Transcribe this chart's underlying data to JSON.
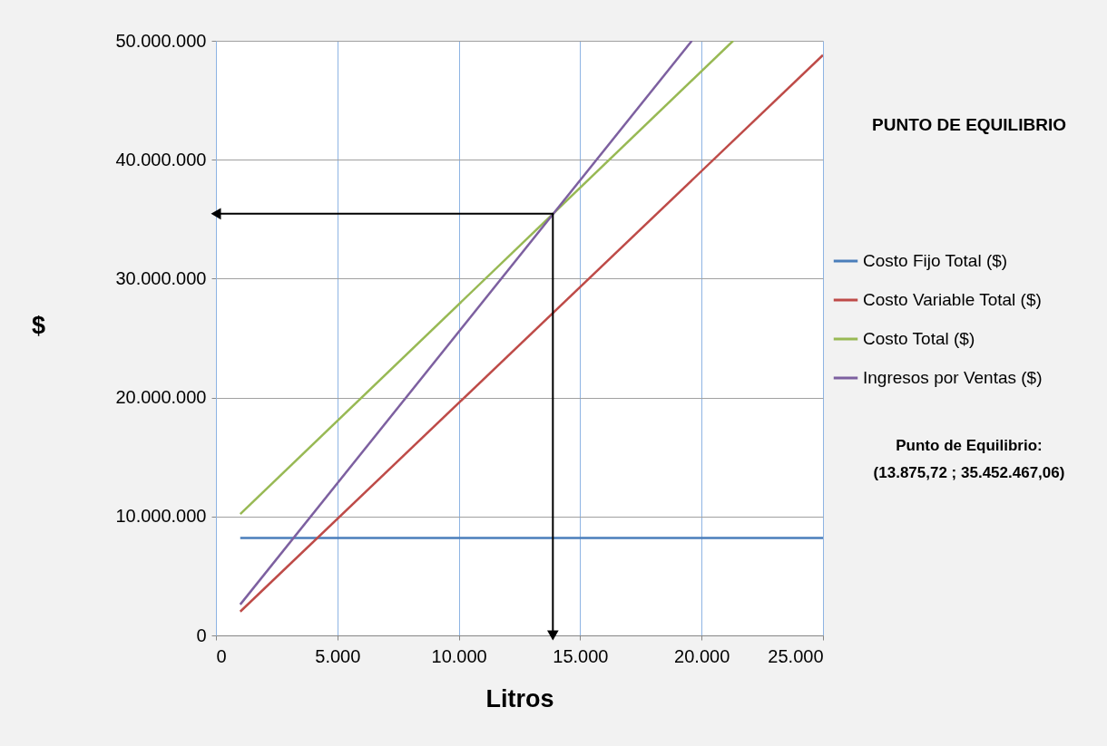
{
  "chart_data": {
    "type": "line",
    "title": "PUNTO DE EQUILIBRIO",
    "xlabel": "Litros",
    "ylabel": "$",
    "series": [
      {
        "name": "Costo Fijo Total ($)",
        "color": "#4a7ebb",
        "x": [
          1000,
          25000
        ],
        "values": [
          8200000,
          8200000
        ]
      },
      {
        "name": "Costo Variable Total ($)",
        "color": "#be4b48",
        "x": [
          1000,
          25000
        ],
        "values": [
          2000000,
          48800000
        ]
      },
      {
        "name": "Costo Total ($)",
        "color": "#98b954",
        "x": [
          1000,
          21300
        ],
        "values": [
          10200000,
          50000000
        ]
      },
      {
        "name": "Ingresos por Ventas ($)",
        "color": "#7d60a0",
        "x": [
          1000,
          19600
        ],
        "values": [
          2600000,
          50000000
        ]
      },
      {
        "color": "#000000",
        "x": [
          0,
          13875.72,
          13875.72
        ],
        "values": [
          35452467.06,
          35452467.06,
          0
        ]
      }
    ],
    "annotations": [
      "Punto de Equilibrio:\n(13.875,72 ; 35.452.467,06)"
    ],
    "xlim": [
      0,
      25000
    ],
    "xticks": [
      0,
      {
        "value": 5000,
        "label": "5.000"
      },
      {
        "value": 10000,
        "label": "10.000"
      },
      {
        "value": 15000,
        "label": "15.000"
      },
      {
        "value": 20000,
        "label": "20.000"
      },
      {
        "value": 25000,
        "label": "25.000"
      }
    ],
    "ylim": [
      0,
      50000000
    ],
    "yticks": [
      0,
      {
        "value": 10000000,
        "label": "10.000.000"
      },
      {
        "value": 20000000,
        "label": "20.000.000"
      },
      {
        "value": 30000000,
        "label": "30.000.000"
      },
      {
        "value": 40000000,
        "label": "40.000.000"
      },
      {
        "value": 50000000,
        "label": "50.000.000"
      }
    ],
    "grid": true,
    "legend": "right"
  }
}
